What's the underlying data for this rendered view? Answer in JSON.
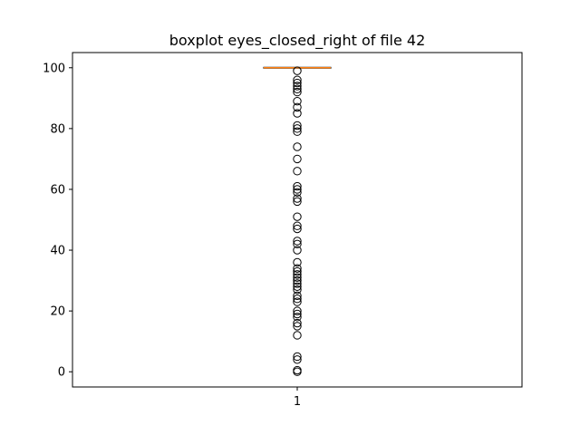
{
  "chart_data": {
    "type": "boxplot",
    "title": "boxplot eyes_closed_right of file 42",
    "xlabel": "",
    "ylabel": "",
    "categories": [
      "1"
    ],
    "ylim": [
      -5,
      105
    ],
    "yticks": [
      0,
      20,
      40,
      60,
      80,
      100
    ],
    "grid": false,
    "legend": "none",
    "box": {
      "category": "1",
      "q1": 100,
      "median": 100,
      "q3": 100,
      "whisker_low": 100,
      "whisker_high": 100
    },
    "outliers": [
      99,
      96,
      95,
      94,
      93,
      92,
      89,
      87,
      85,
      81,
      80,
      79,
      74,
      70,
      66,
      61,
      60,
      59,
      57,
      56,
      51,
      48,
      47,
      43,
      42,
      40,
      36,
      34,
      33,
      32,
      31,
      30,
      29,
      28,
      27,
      25,
      24,
      23,
      20,
      19,
      18,
      16,
      15,
      12,
      5,
      4,
      0.5,
      0
    ],
    "colors": {
      "box": "#000000",
      "median": "#ff7f0e",
      "outlier_edge": "#000000"
    }
  }
}
